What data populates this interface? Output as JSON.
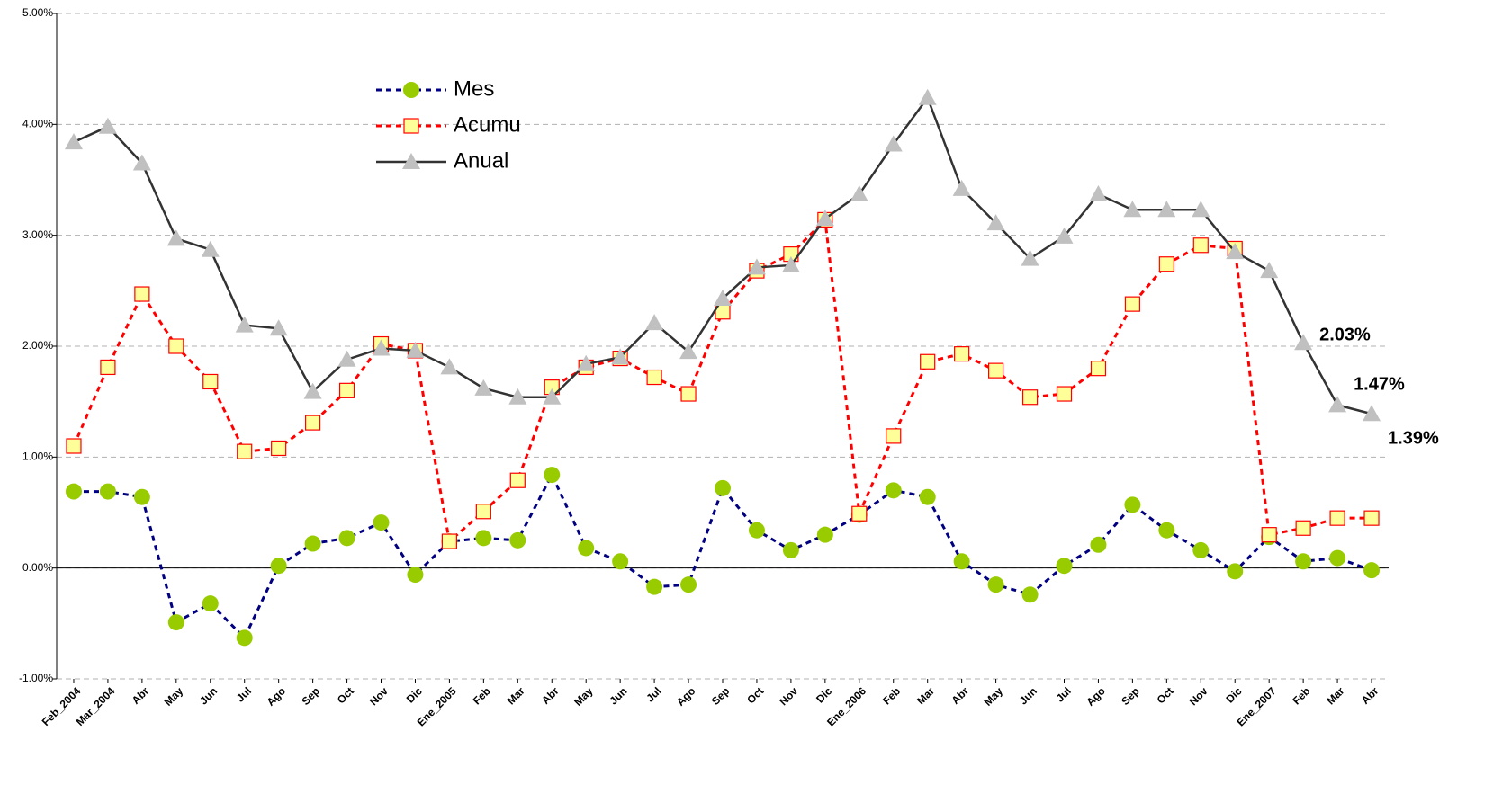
{
  "chart_data": {
    "type": "line",
    "categories": [
      "Feb_2004",
      "Mar_2004",
      "Abr",
      "May",
      "Jun",
      "Jul",
      "Ago",
      "Sep",
      "Oct",
      "Nov",
      "Dic",
      "Ene_2005",
      "Feb",
      "Mar",
      "Abr",
      "May",
      "Jun",
      "Jul",
      "Ago",
      "Sep",
      "Oct",
      "Nov",
      "Dic",
      "Ene_2006",
      "Feb",
      "Mar",
      "Abr",
      "May",
      "Jun",
      "Jul",
      "Ago",
      "Sep",
      "Oct",
      "Nov",
      "Dic",
      "Ene_2007",
      "Feb",
      "Mar",
      "Abr"
    ],
    "series": [
      {
        "name": "Mes",
        "color": "#000080",
        "marker": "circle",
        "marker_color": "#99cc00",
        "dashed": true,
        "values": [
          0.69,
          0.69,
          0.64,
          -0.49,
          -0.32,
          -0.63,
          0.02,
          0.22,
          0.27,
          0.41,
          -0.06,
          0.24,
          0.27,
          0.25,
          0.84,
          0.18,
          0.06,
          -0.17,
          -0.15,
          0.72,
          0.34,
          0.16,
          0.3,
          0.48,
          0.7,
          0.64,
          0.06,
          -0.15,
          -0.24,
          0.02,
          0.21,
          0.57,
          0.34,
          0.16,
          -0.03,
          0.28,
          0.06,
          0.09,
          -0.02
        ]
      },
      {
        "name": "Acumu",
        "color": "#ff0000",
        "marker": "square",
        "marker_color": "#ffff99",
        "dashed": true,
        "values": [
          1.1,
          1.81,
          2.47,
          2.0,
          1.68,
          1.05,
          1.08,
          1.31,
          1.6,
          2.02,
          1.96,
          0.24,
          0.51,
          0.79,
          1.63,
          1.81,
          1.89,
          1.72,
          1.57,
          2.31,
          2.68,
          2.83,
          3.14,
          0.49,
          1.19,
          1.86,
          1.93,
          1.78,
          1.54,
          1.57,
          1.8,
          2.38,
          2.74,
          2.91,
          2.88,
          0.3,
          0.36,
          0.45,
          0.45
        ]
      },
      {
        "name": "Anual",
        "color": "#333333",
        "marker": "triangle",
        "marker_color": "#c0c0c0",
        "dashed": false,
        "values": [
          3.84,
          3.98,
          3.65,
          2.97,
          2.87,
          2.19,
          2.16,
          1.59,
          1.88,
          1.98,
          1.96,
          1.81,
          1.62,
          1.54,
          1.54,
          1.84,
          1.9,
          2.21,
          1.95,
          2.43,
          2.71,
          2.73,
          3.15,
          3.37,
          3.82,
          4.24,
          3.42,
          3.11,
          2.79,
          2.99,
          3.37,
          3.23,
          3.23,
          3.23,
          2.85,
          2.68,
          2.03,
          1.47,
          1.39
        ],
        "value_labels": [
          null,
          null,
          null,
          null,
          null,
          null,
          null,
          null,
          null,
          null,
          null,
          null,
          null,
          null,
          null,
          null,
          null,
          null,
          null,
          null,
          null,
          null,
          null,
          null,
          null,
          null,
          null,
          null,
          null,
          null,
          null,
          null,
          null,
          null,
          null,
          null,
          "2.03%",
          "1.47%",
          "1.39%"
        ]
      }
    ],
    "ylim": [
      -1,
      5
    ],
    "yticks": [
      {
        "value": -1,
        "label": "-1.00%"
      },
      {
        "value": 0,
        "label": "0.00%"
      },
      {
        "value": 1,
        "label": "1.00%"
      },
      {
        "value": 2,
        "label": "2.00%"
      },
      {
        "value": 3,
        "label": "3.00%"
      },
      {
        "value": 4,
        "label": "4.00%"
      },
      {
        "value": 5,
        "label": "5.00%"
      }
    ],
    "grid": true
  }
}
